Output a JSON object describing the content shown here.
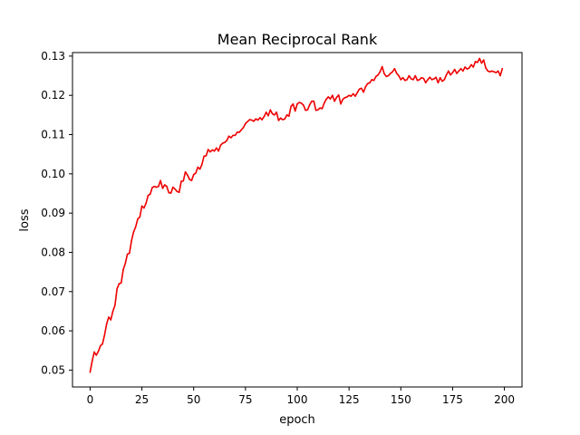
{
  "chart_data": {
    "type": "line",
    "title": "Mean Reciprocal Rank",
    "xlabel": "epoch",
    "ylabel": "loss",
    "xlim": [
      -8.5,
      208.5
    ],
    "ylim": [
      0.0457,
      0.1309
    ],
    "x_ticks": [
      0,
      25,
      50,
      75,
      100,
      125,
      150,
      175,
      200
    ],
    "x_tick_labels": [
      "0",
      "25",
      "50",
      "75",
      "100",
      "125",
      "150",
      "175",
      "200"
    ],
    "y_ticks": [
      0.05,
      0.06,
      0.07,
      0.08,
      0.09,
      0.1,
      0.11,
      0.12,
      0.13
    ],
    "y_tick_labels": [
      "0.05",
      "0.06",
      "0.07",
      "0.08",
      "0.09",
      "0.10",
      "0.11",
      "0.12",
      "0.13"
    ],
    "grid": false,
    "legend": "none",
    "series": [
      {
        "color": "#ee0000",
        "x": [
          0,
          1,
          2,
          3,
          4,
          5,
          6,
          7,
          8,
          9,
          10,
          11,
          12,
          13,
          14,
          15,
          16,
          17,
          18,
          19,
          20,
          21,
          22,
          23,
          24,
          25,
          26,
          27,
          28,
          29,
          30,
          31,
          32,
          33,
          34,
          35,
          36,
          37,
          38,
          39,
          40,
          41,
          42,
          43,
          44,
          45,
          46,
          47,
          48,
          49,
          50,
          51,
          52,
          53,
          54,
          55,
          56,
          57,
          58,
          59,
          60,
          61,
          62,
          63,
          64,
          65,
          66,
          67,
          68,
          69,
          70,
          71,
          72,
          73,
          74,
          75,
          76,
          77,
          78,
          79,
          80,
          81,
          82,
          83,
          84,
          85,
          86,
          87,
          88,
          89,
          90,
          91,
          92,
          93,
          94,
          95,
          96,
          97,
          98,
          99,
          100,
          101,
          102,
          103,
          104,
          105,
          106,
          107,
          108,
          109,
          110,
          111,
          112,
          113,
          114,
          115,
          116,
          117,
          118,
          119,
          120,
          121,
          122,
          123,
          124,
          125,
          126,
          127,
          128,
          129,
          130,
          131,
          132,
          133,
          134,
          135,
          136,
          137,
          138,
          139,
          140,
          141,
          142,
          143,
          144,
          145,
          146,
          147,
          148,
          149,
          150,
          151,
          152,
          153,
          154,
          155,
          156,
          157,
          158,
          159,
          160,
          161,
          162,
          163,
          164,
          165,
          166,
          167,
          168,
          169,
          170,
          171,
          172,
          173,
          174,
          175,
          176,
          177,
          178,
          179,
          180,
          181,
          182,
          183,
          184,
          185,
          186,
          187,
          188,
          189,
          190,
          191,
          192,
          193,
          194,
          195,
          196,
          197,
          198,
          199
        ],
        "y": [
          0.0495,
          0.0523,
          0.0546,
          0.0538,
          0.0548,
          0.0562,
          0.0567,
          0.059,
          0.0618,
          0.0635,
          0.0628,
          0.065,
          0.0665,
          0.0707,
          0.072,
          0.0722,
          0.0756,
          0.0772,
          0.0795,
          0.0798,
          0.083,
          0.0852,
          0.0865,
          0.0885,
          0.089,
          0.0918,
          0.0913,
          0.0925,
          0.0945,
          0.0948,
          0.0965,
          0.0968,
          0.0966,
          0.0968,
          0.0983,
          0.0963,
          0.0972,
          0.0968,
          0.0952,
          0.0951,
          0.0966,
          0.0961,
          0.0955,
          0.0953,
          0.0981,
          0.0982,
          0.1005,
          0.0997,
          0.0986,
          0.0983,
          0.0998,
          0.1002,
          0.1017,
          0.1012,
          0.1024,
          0.1045,
          0.1046,
          0.1062,
          0.1056,
          0.1061,
          0.1058,
          0.1066,
          0.1058,
          0.1073,
          0.1078,
          0.108,
          0.1085,
          0.1096,
          0.1092,
          0.1098,
          0.1098,
          0.1106,
          0.1106,
          0.1112,
          0.1118,
          0.1128,
          0.1133,
          0.1138,
          0.1137,
          0.1134,
          0.114,
          0.1137,
          0.1143,
          0.1138,
          0.1146,
          0.1157,
          0.1148,
          0.1163,
          0.1153,
          0.115,
          0.1157,
          0.1136,
          0.1142,
          0.1138,
          0.114,
          0.115,
          0.1147,
          0.1172,
          0.1178,
          0.116,
          0.1178,
          0.1182,
          0.118,
          0.1175,
          0.1162,
          0.1163,
          0.1176,
          0.1185,
          0.1185,
          0.1162,
          0.1163,
          0.1168,
          0.1166,
          0.118,
          0.119,
          0.1196,
          0.1191,
          0.12,
          0.1185,
          0.1195,
          0.1201,
          0.1178,
          0.119,
          0.1194,
          0.1196,
          0.12,
          0.1198,
          0.1204,
          0.1198,
          0.1207,
          0.1216,
          0.1218,
          0.1208,
          0.1222,
          0.123,
          0.1232,
          0.124,
          0.1238,
          0.1248,
          0.1252,
          0.126,
          0.1273,
          0.1255,
          0.1248,
          0.125,
          0.1256,
          0.126,
          0.1268,
          0.1256,
          0.125,
          0.124,
          0.1245,
          0.1238,
          0.124,
          0.125,
          0.1242,
          0.124,
          0.125,
          0.1238,
          0.124,
          0.1245,
          0.1243,
          0.1232,
          0.124,
          0.1246,
          0.124,
          0.1242,
          0.1246,
          0.1232,
          0.1245,
          0.1236,
          0.124,
          0.1252,
          0.1262,
          0.1252,
          0.1258,
          0.1266,
          0.1256,
          0.1262,
          0.1268,
          0.1262,
          0.1272,
          0.1267,
          0.127,
          0.1278,
          0.1272,
          0.1286,
          0.1284,
          0.1294,
          0.1282,
          0.129,
          0.127,
          0.1262,
          0.126,
          0.1262,
          0.126,
          0.1258,
          0.1262,
          0.125,
          0.1268
        ]
      }
    ]
  }
}
